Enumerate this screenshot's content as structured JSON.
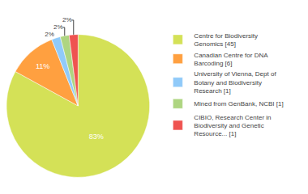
{
  "chart_data": {
    "type": "pie",
    "categories": [
      "Centre for Biodiversity\nGenomics [45]",
      "Canadian Centre for DNA\nBarcoding [6]",
      "University of Vienna, Dept of\nBotany and Biodiversity\nResearch [1]",
      "Mined from GenBank, NCBI [1]",
      "CIBIO, Research Center in\nBiodiversity and Genetic\nResource... [1]"
    ],
    "values": [
      83,
      11,
      2,
      2,
      2
    ],
    "value_labels": [
      "83%",
      "11%",
      "2%",
      "2%",
      "2%"
    ],
    "data_labels": true,
    "colors": [
      "#d4e157",
      "#ffa040",
      "#90caf9",
      "#aed581",
      "#ef5350"
    ],
    "legend": "right"
  }
}
